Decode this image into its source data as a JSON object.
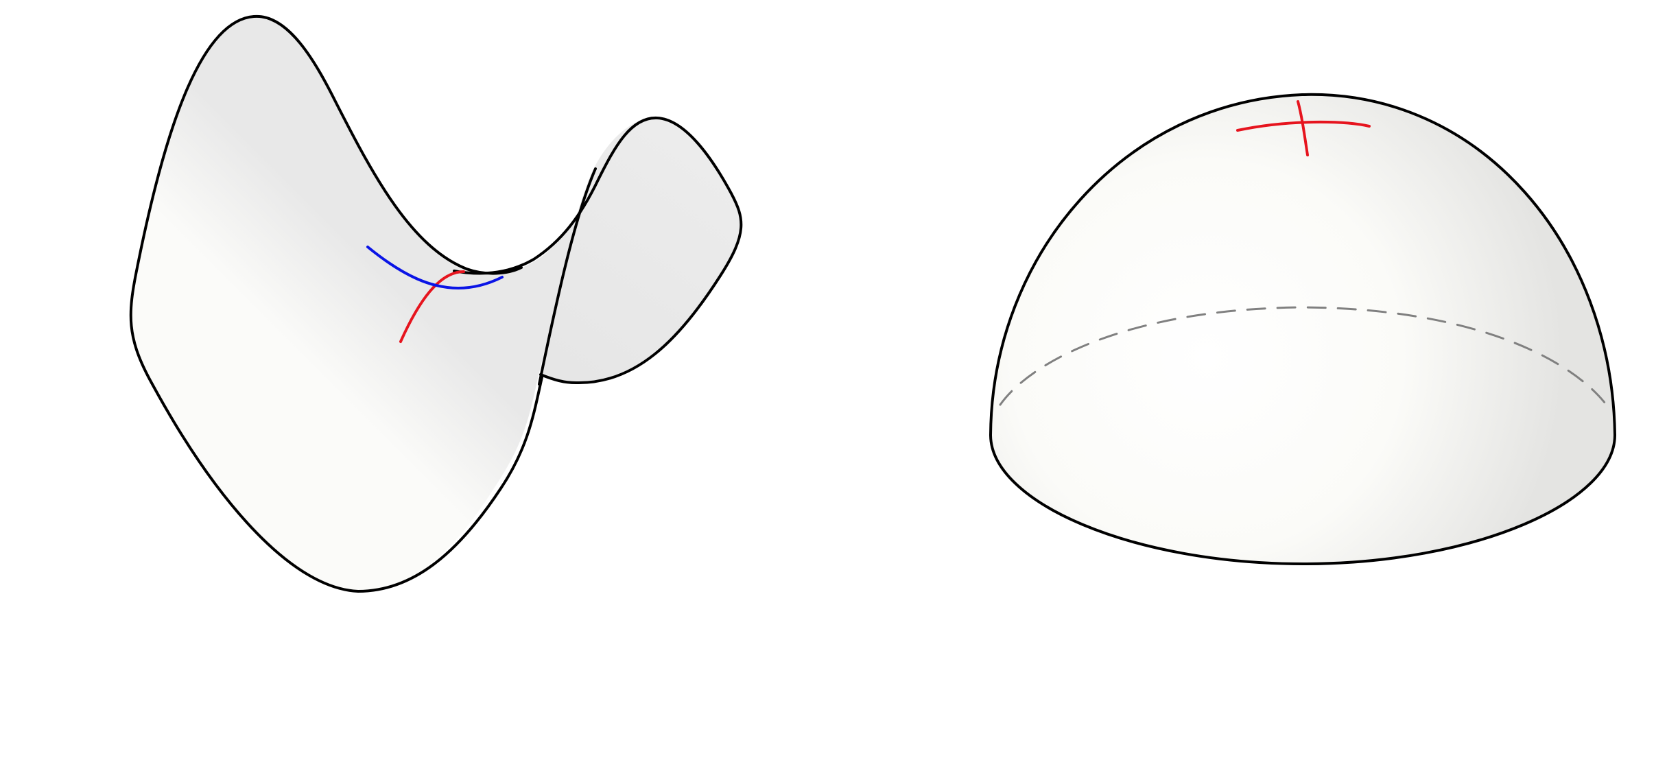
{
  "figure": {
    "panels": [
      {
        "name": "saddle-surface",
        "curves": [
          {
            "name": "saddle-curve-blue",
            "color": "#0a14e6"
          },
          {
            "name": "saddle-curve-red",
            "color": "#e6141e"
          }
        ]
      },
      {
        "name": "hemisphere-surface",
        "curves": [
          {
            "name": "dome-curve-horizontal",
            "color": "#e6141e"
          },
          {
            "name": "dome-curve-vertical",
            "color": "#e6141e"
          }
        ],
        "base_ellipse_back": {
          "style": "dashed",
          "color": "#808080"
        }
      }
    ],
    "colors": {
      "outline": "#000000",
      "shading_light": "#fbfbf9",
      "shading_dark": "#e6e6e6",
      "hidden_edge": "#808080"
    }
  }
}
